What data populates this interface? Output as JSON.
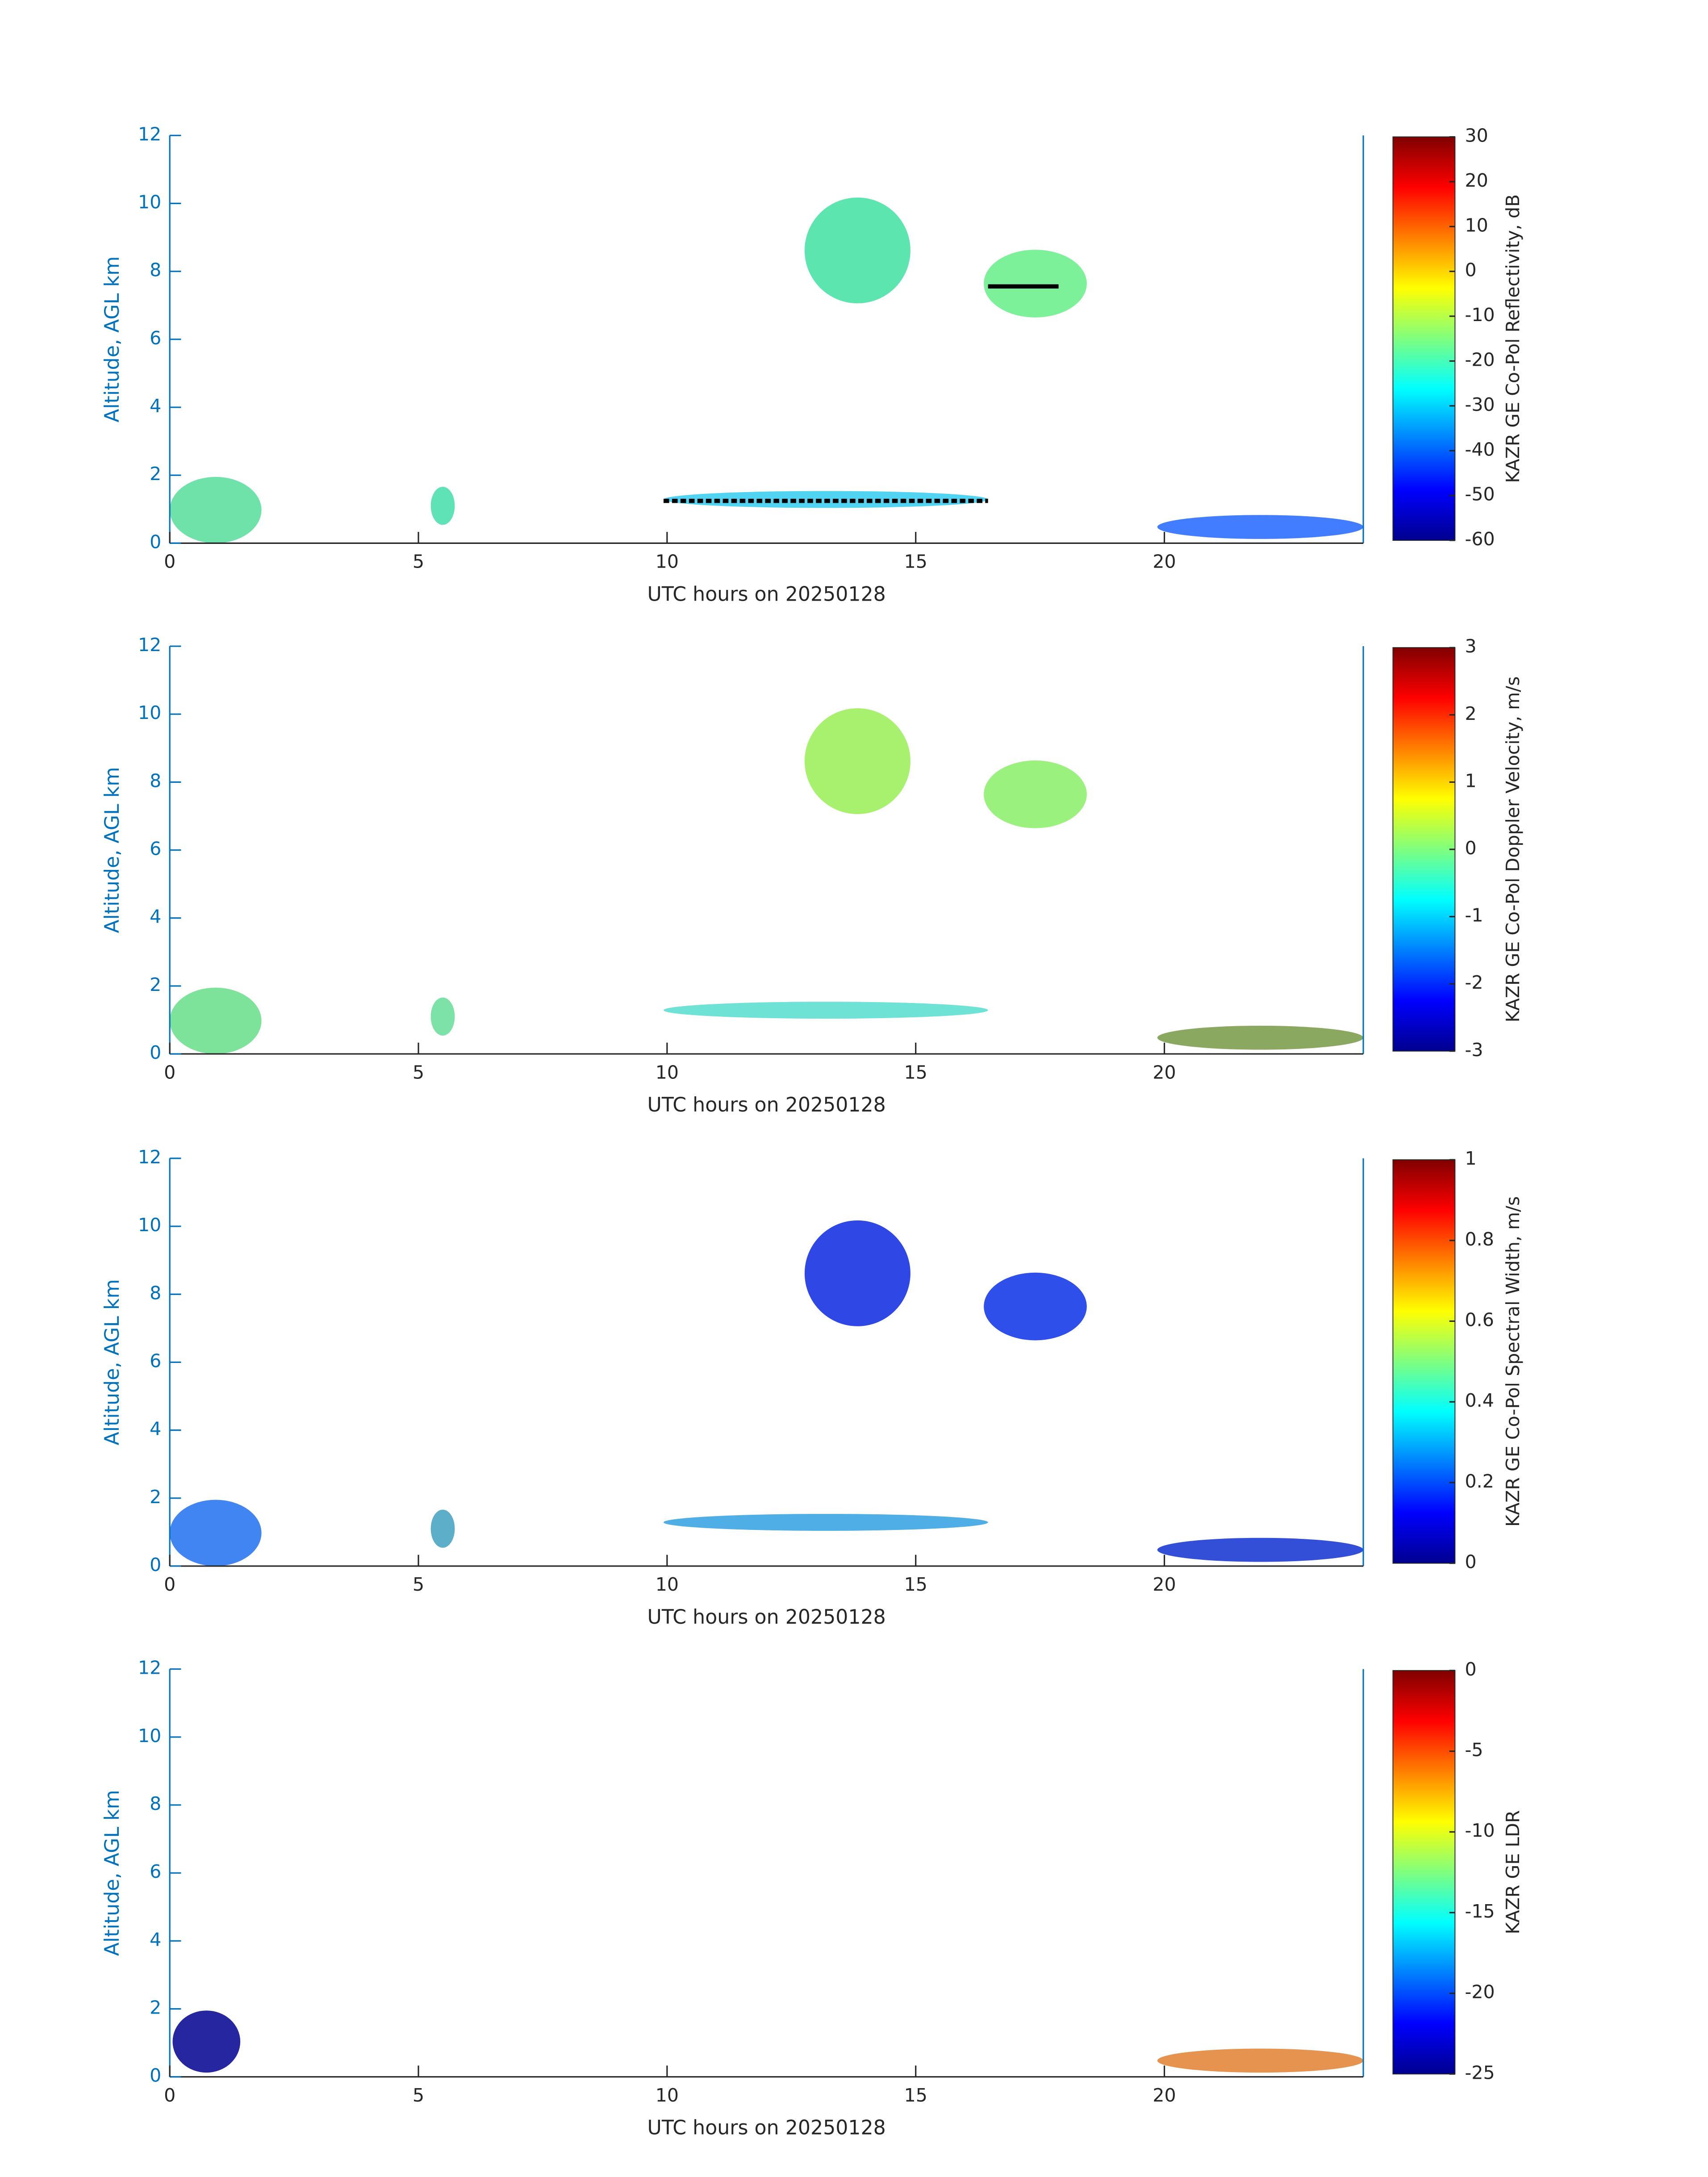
{
  "chart_data": [
    {
      "type": "heatmap",
      "xlabel": "UTC hours on 20250128",
      "ylabel": "Altitude, AGL km",
      "xlim": [
        0,
        24
      ],
      "xticks": [
        0,
        5,
        10,
        15,
        20
      ],
      "ylim": [
        0,
        12
      ],
      "yticks": [
        0,
        2,
        4,
        6,
        8,
        10,
        12
      ],
      "colorbar_label": "KAZR GE Co-Pol Reflectivity, dB",
      "clim": [
        -60,
        30
      ],
      "cticks": [
        -60,
        -50,
        -40,
        -30,
        -20,
        -10,
        0,
        10,
        20,
        30
      ],
      "colormap": "jet"
    },
    {
      "type": "heatmap",
      "xlabel": "UTC hours on 20250128",
      "ylabel": "Altitude, AGL km",
      "xlim": [
        0,
        24
      ],
      "xticks": [
        0,
        5,
        10,
        15,
        20
      ],
      "ylim": [
        0,
        12
      ],
      "yticks": [
        0,
        2,
        4,
        6,
        8,
        10,
        12
      ],
      "colorbar_label": "KAZR GE Co-Pol Doppler Velocity, m/s",
      "clim": [
        -3,
        3
      ],
      "cticks": [
        -3,
        -2,
        -1,
        0,
        1,
        2,
        3
      ],
      "colormap": "jet"
    },
    {
      "type": "heatmap",
      "xlabel": "UTC hours on 20250128",
      "ylabel": "Altitude, AGL km",
      "xlim": [
        0,
        24
      ],
      "xticks": [
        0,
        5,
        10,
        15,
        20
      ],
      "ylim": [
        0,
        12
      ],
      "yticks": [
        0,
        2,
        4,
        6,
        8,
        10,
        12
      ],
      "colorbar_label": "KAZR GE Co-Pol Spectral Width, m/s",
      "clim": [
        0,
        1
      ],
      "cticks": [
        0,
        0.2,
        0.4,
        0.6,
        0.8,
        1
      ],
      "colormap": "jet"
    },
    {
      "type": "heatmap",
      "xlabel": "UTC hours on 20250128",
      "ylabel": "Altitude, AGL km",
      "xlim": [
        0,
        24
      ],
      "xticks": [
        0,
        5,
        10,
        15,
        20
      ],
      "ylim": [
        0,
        12
      ],
      "yticks": [
        0,
        2,
        4,
        6,
        8,
        10,
        12
      ],
      "colorbar_label": "KAZR GE LDR",
      "clim": [
        -25,
        0
      ],
      "cticks": [
        -25,
        -20,
        -15,
        -10,
        -5,
        0
      ],
      "colormap": "jet"
    }
  ]
}
